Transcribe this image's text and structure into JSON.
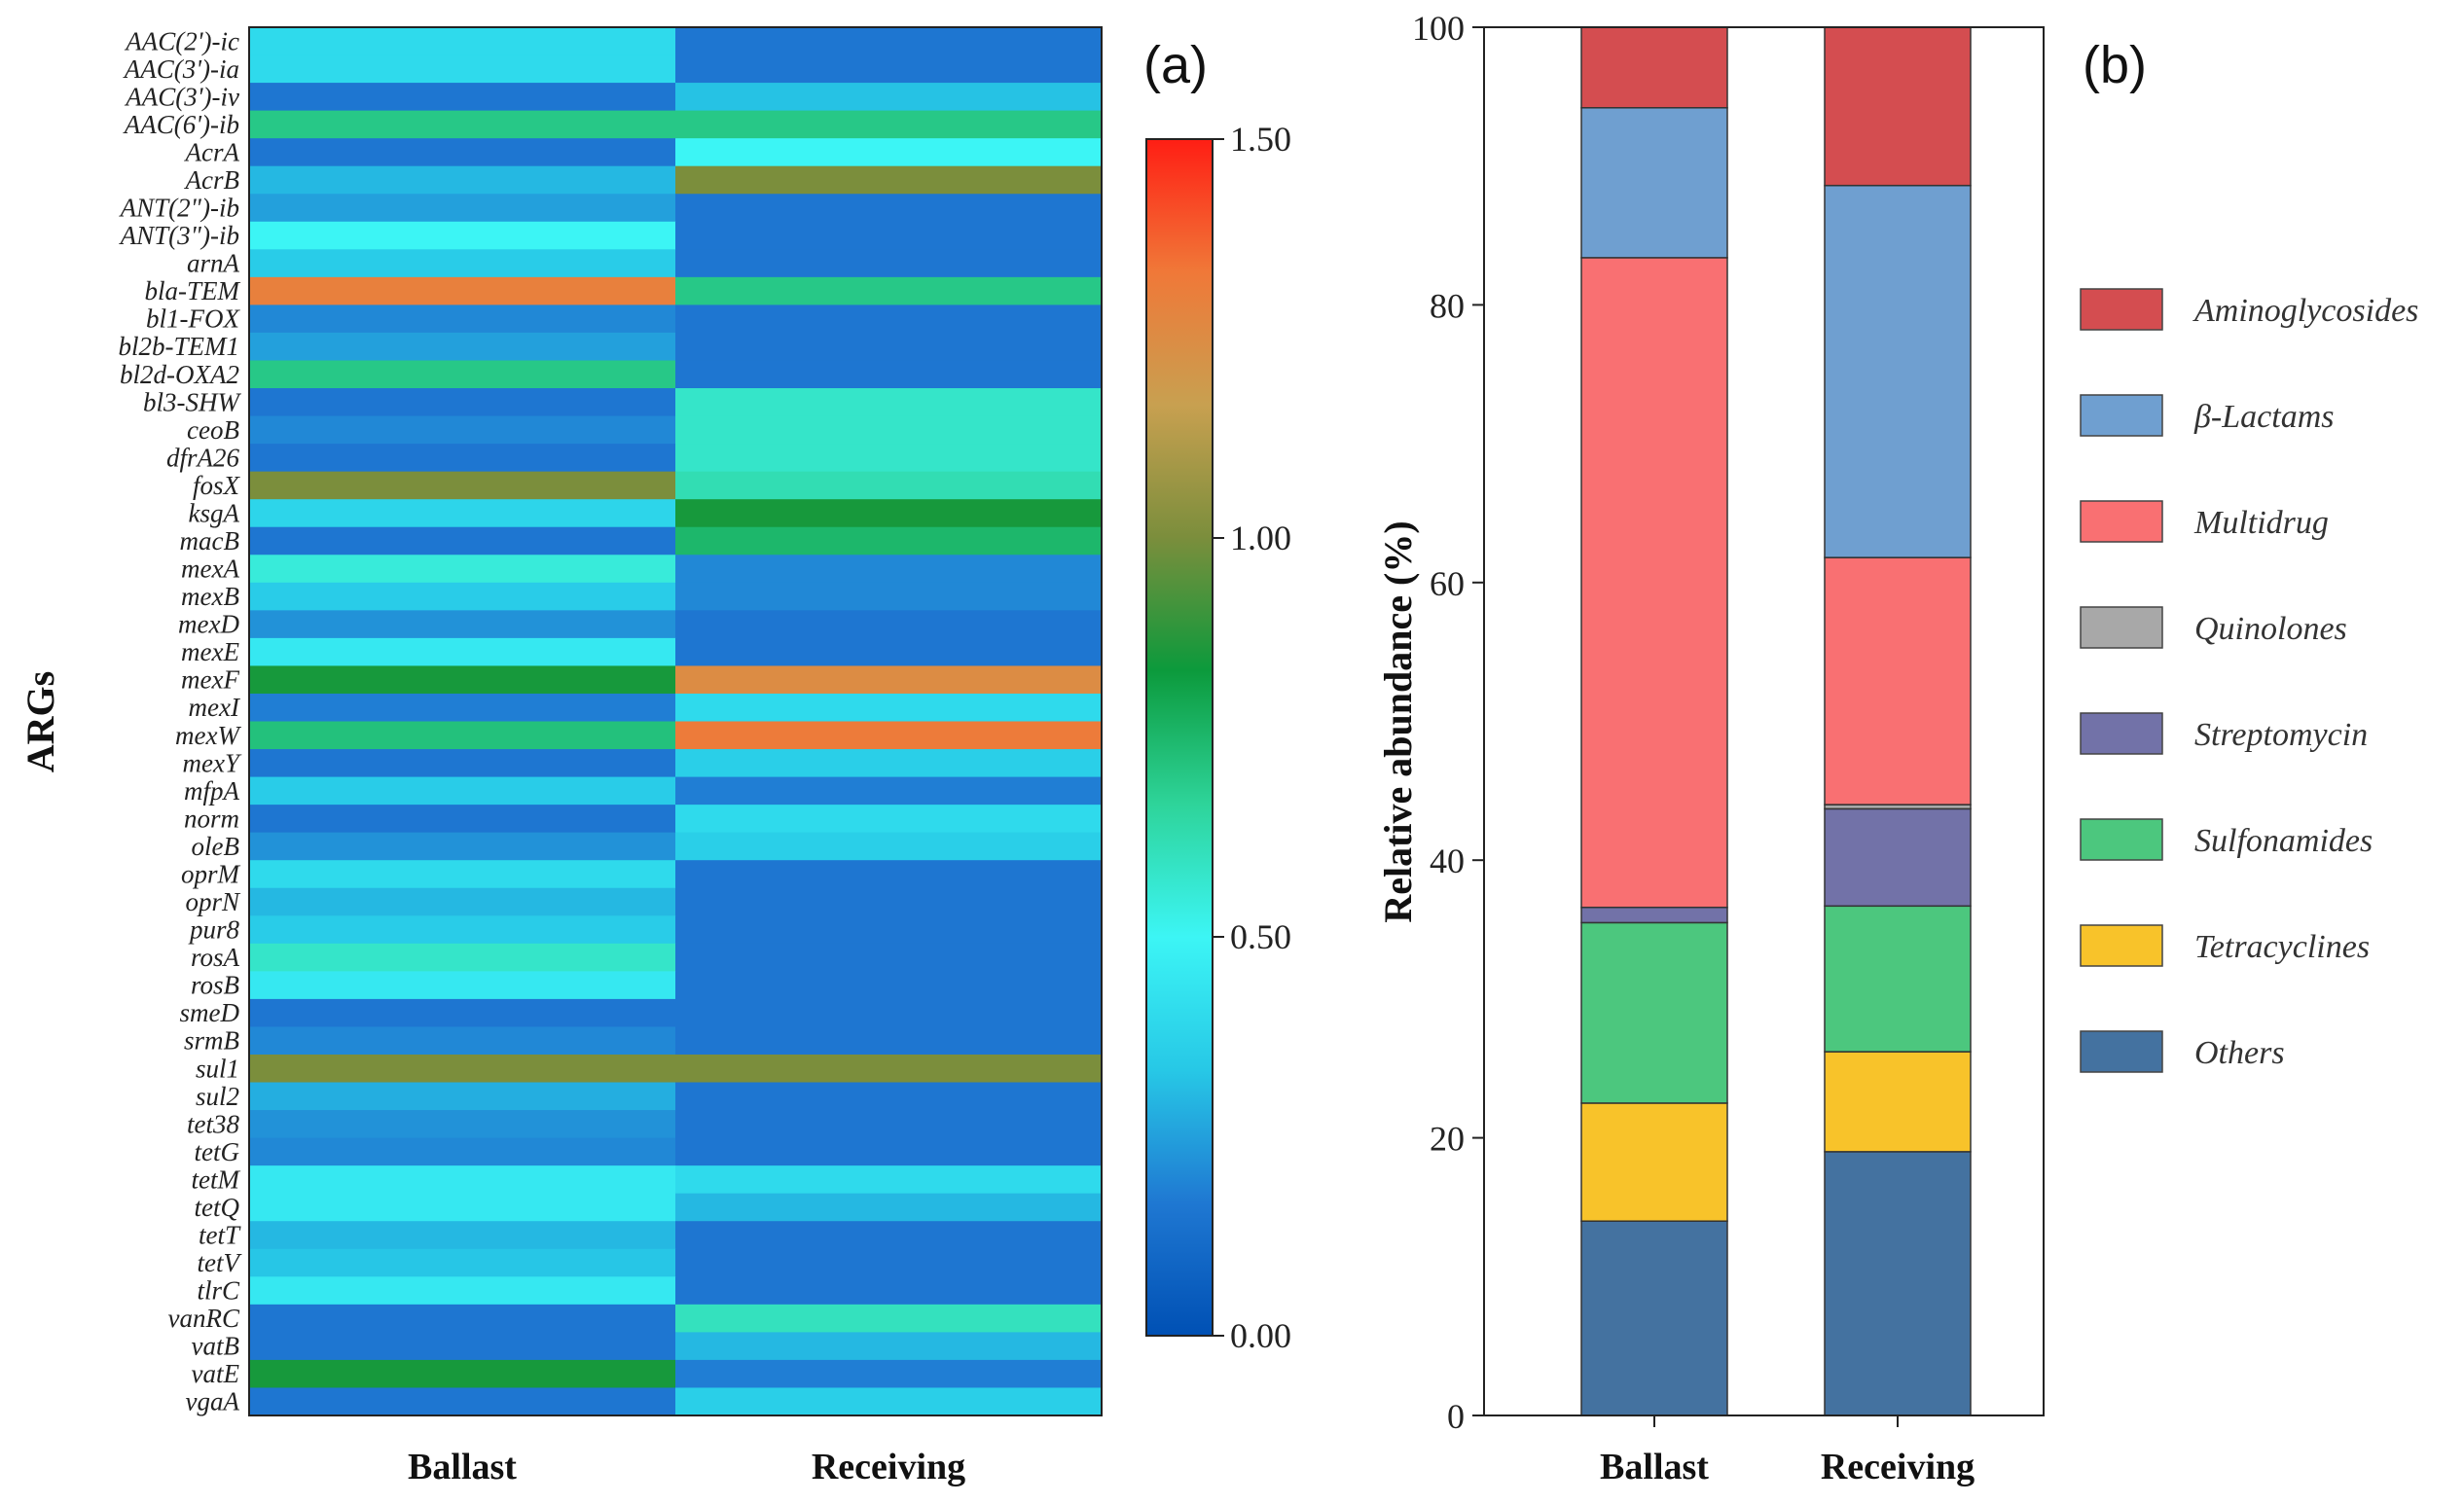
{
  "panel_a_label": "(a)",
  "panel_b_label": "(b)",
  "colorbar_ticks": [
    "1.50",
    "1.00",
    "0.50",
    "0.00"
  ],
  "chart_data": [
    {
      "type": "heatmap",
      "title": "",
      "ylabel": "ARGs",
      "xlabel": "",
      "columns": [
        "Ballast",
        "Receiving"
      ],
      "color_range": [
        0,
        1.5
      ],
      "color_scale": [
        "#0050b4",
        "#1f78d2",
        "#27c8e6",
        "#3cf5f5",
        "#2ed49a",
        "#0c9a3c",
        "#7b8e3c",
        "#c8a050",
        "#f07838",
        "#ff1e14"
      ],
      "rows": [
        "AAC(2')-ic",
        "AAC(3')-ia",
        "AAC(3')-iv",
        "AAC(6')-ib",
        "AcrA",
        "AcrB",
        "ANT(2\")-ib",
        "ANT(3\")-ib",
        "arnA",
        "bla-TEM",
        "bl1-FOX",
        "bl2b-TEM1",
        "bl2d-OXA2",
        "bl3-SHW",
        "ceoB",
        "dfrA26",
        "fosX",
        "ksgA",
        "macB",
        "mexA",
        "mexB",
        "mexD",
        "mexE",
        "mexF",
        "mexI",
        "mexW",
        "mexY",
        "mfpA",
        "norm",
        "oleB",
        "oprM",
        "oprN",
        "pur8",
        "rosA",
        "rosB",
        "smeD",
        "srmB",
        "sul1",
        "sul2",
        "tet38",
        "tetG",
        "tetM",
        "tetQ",
        "tetT",
        "tetV",
        "tlrC",
        "vanRC",
        "vatB",
        "vatE",
        "vgaA"
      ],
      "values": [
        [
          0.4,
          0.16
        ],
        [
          0.4,
          0.16
        ],
        [
          0.16,
          0.32
        ],
        [
          0.7,
          0.7
        ],
        [
          0.16,
          0.5
        ],
        [
          0.3,
          1.0
        ],
        [
          0.25,
          0.16
        ],
        [
          0.5,
          0.16
        ],
        [
          0.35,
          0.16
        ],
        [
          1.3,
          0.7
        ],
        [
          0.2,
          0.16
        ],
        [
          0.25,
          0.16
        ],
        [
          0.7,
          0.16
        ],
        [
          0.16,
          0.58
        ],
        [
          0.2,
          0.58
        ],
        [
          0.16,
          0.58
        ],
        [
          1.0,
          0.62
        ],
        [
          0.38,
          0.85
        ],
        [
          0.16,
          0.75
        ],
        [
          0.55,
          0.2
        ],
        [
          0.35,
          0.2
        ],
        [
          0.22,
          0.16
        ],
        [
          0.45,
          0.16
        ],
        [
          0.85,
          1.25
        ],
        [
          0.18,
          0.4
        ],
        [
          0.72,
          1.32
        ],
        [
          0.16,
          0.36
        ],
        [
          0.35,
          0.18
        ],
        [
          0.16,
          0.4
        ],
        [
          0.22,
          0.36
        ],
        [
          0.4,
          0.16
        ],
        [
          0.3,
          0.16
        ],
        [
          0.35,
          0.16
        ],
        [
          0.58,
          0.16
        ],
        [
          0.45,
          0.16
        ],
        [
          0.16,
          0.16
        ],
        [
          0.2,
          0.16
        ],
        [
          1.0,
          1.0
        ],
        [
          0.28,
          0.16
        ],
        [
          0.22,
          0.16
        ],
        [
          0.2,
          0.16
        ],
        [
          0.45,
          0.4
        ],
        [
          0.45,
          0.3
        ],
        [
          0.3,
          0.16
        ],
        [
          0.33,
          0.16
        ],
        [
          0.45,
          0.16
        ],
        [
          0.16,
          0.6
        ],
        [
          0.16,
          0.3
        ],
        [
          0.85,
          0.18
        ],
        [
          0.16,
          0.36
        ]
      ]
    },
    {
      "type": "bar",
      "stacked": true,
      "title": "",
      "xlabel": "",
      "ylabel": "Relative abundance (%)",
      "ylim": [
        0,
        100
      ],
      "yticks": [
        0,
        20,
        40,
        60,
        80,
        100
      ],
      "categories": [
        "Ballast",
        "Receiving"
      ],
      "series": [
        {
          "name": "Others",
          "color": "#4472a0",
          "values": [
            14,
            19
          ]
        },
        {
          "name": "Tetracyclines",
          "color": "#f8c32a",
          "values": [
            8.5,
            7.2
          ]
        },
        {
          "name": "Sulfonamides",
          "color": "#4cc77e",
          "values": [
            13,
            10.5
          ]
        },
        {
          "name": "Streptomycin",
          "color": "#7272a8",
          "values": [
            1.1,
            7
          ]
        },
        {
          "name": "Quinolones",
          "color": "#a8a8a8",
          "values": [
            0,
            0.3
          ]
        },
        {
          "name": "Multidrug",
          "color": "#f97072",
          "values": [
            46.8,
            17.8
          ]
        },
        {
          "name": "β-Lactams",
          "color": "#6f9fd0",
          "values": [
            10.8,
            26.8
          ]
        },
        {
          "name": "Aminoglycosides",
          "color": "#d44d50",
          "values": [
            5.8,
            11.4
          ]
        }
      ],
      "legend_order": [
        "Aminoglycosides",
        "β-Lactams",
        "Multidrug",
        "Quinolones",
        "Streptomycin",
        "Sulfonamides",
        "Tetracyclines",
        "Others"
      ],
      "legend_position": "right"
    }
  ]
}
